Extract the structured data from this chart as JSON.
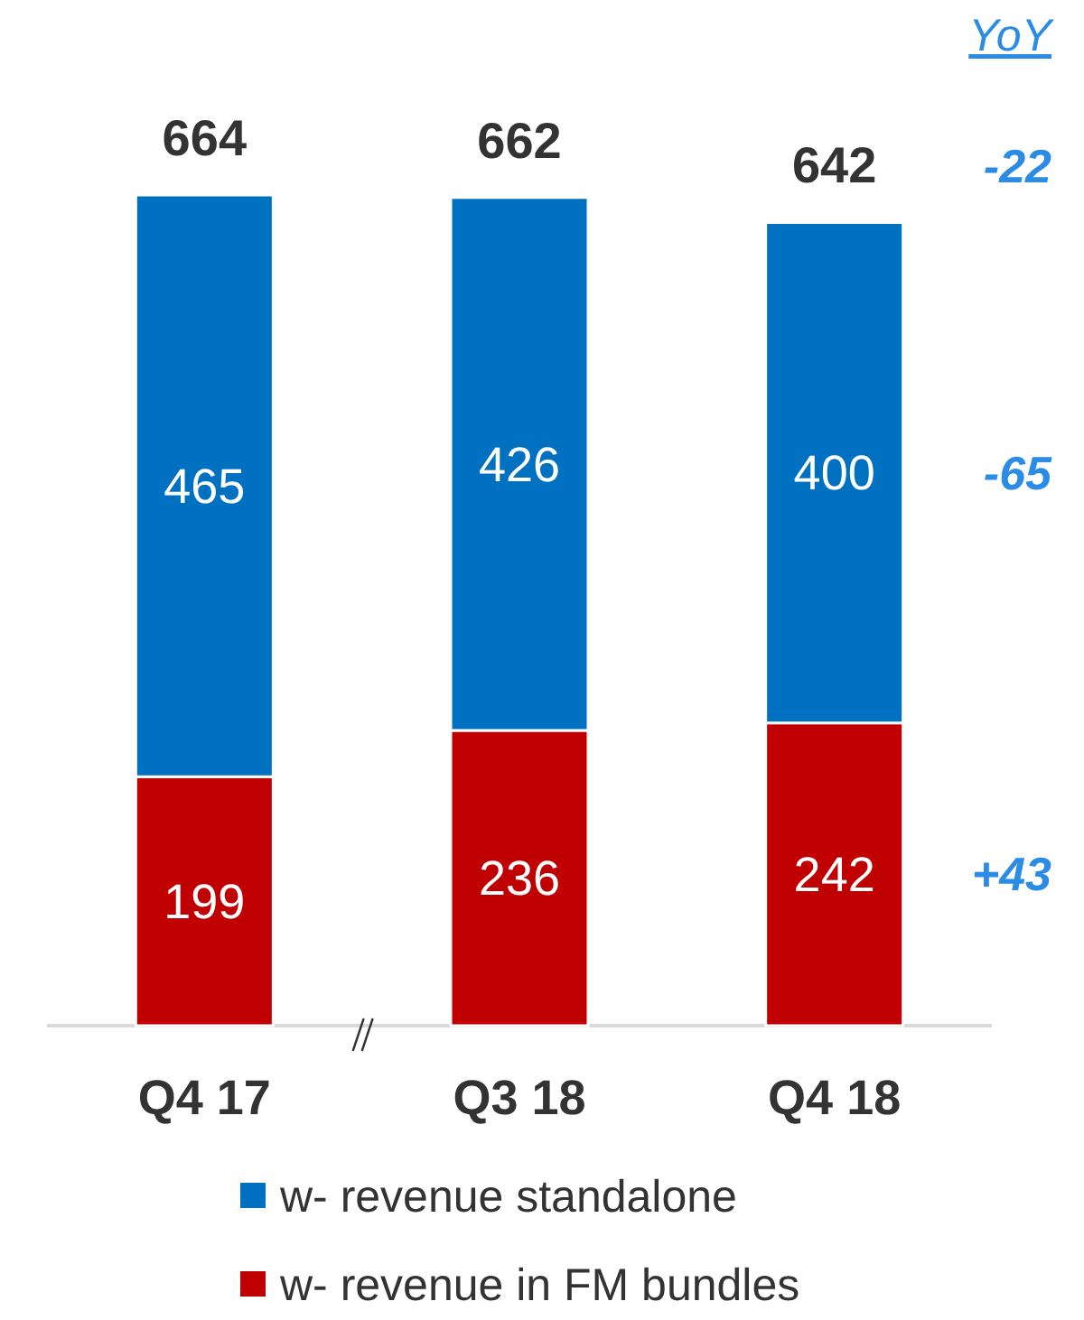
{
  "chart_data": {
    "type": "bar",
    "stacked": true,
    "categories": [
      "Q4 17",
      "Q3 18",
      "Q4 18"
    ],
    "series": [
      {
        "name": "w- revenue in FM bundles",
        "color": "#c00000",
        "values": [
          199,
          236,
          242
        ]
      },
      {
        "name": "w- revenue standalone",
        "color": "#0070c0",
        "values": [
          465,
          426,
          400
        ]
      }
    ],
    "data_labels": true,
    "totals": [
      "664",
      "662",
      "642"
    ],
    "annotations": [
      "YoY",
      "-22",
      "-65",
      "+43"
    ],
    "legend": "bottom",
    "tick_labels": "x"
  }
}
